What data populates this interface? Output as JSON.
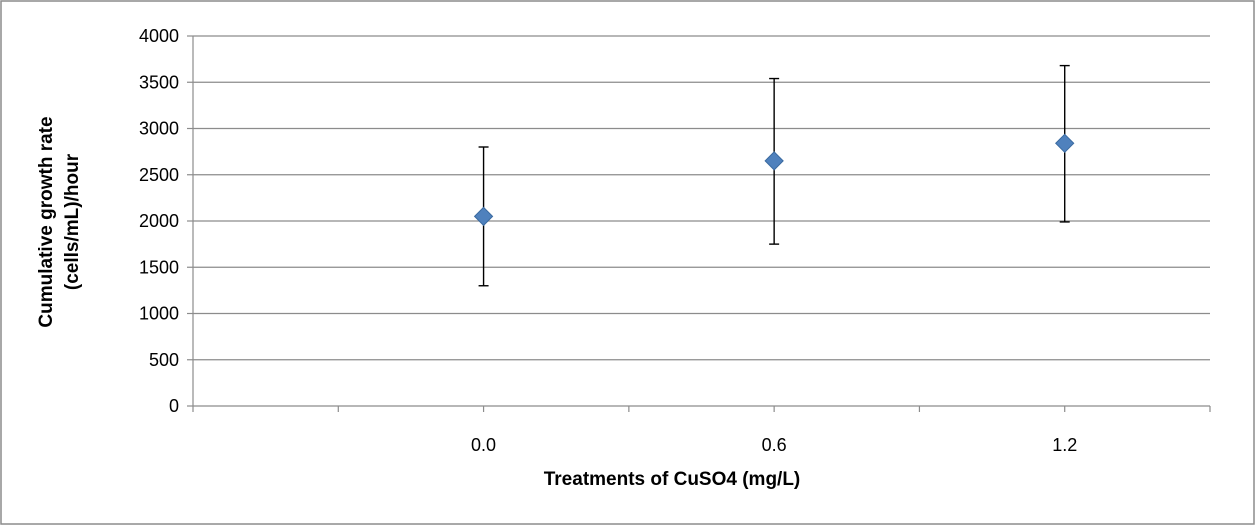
{
  "chart_data": {
    "type": "scatter",
    "title": "",
    "xlabel": "Treatments of CuSO4 (mg/L)",
    "ylabel_lines": [
      "Cumulative growth rate",
      "(cells/mL)/hour"
    ],
    "categories": [
      "0.0",
      "0.6",
      "1.2"
    ],
    "x_category_positions": [
      2,
      4,
      6
    ],
    "x_range": [
      0,
      7
    ],
    "ylim": [
      0,
      4000
    ],
    "y_ticks": [
      0,
      500,
      1000,
      1500,
      2000,
      2500,
      3000,
      3500,
      4000
    ],
    "series": [
      {
        "values": [
          2050,
          2650,
          2840
        ],
        "error_low": [
          1300,
          1750,
          1990
        ],
        "error_high": [
          2800,
          3540,
          3680
        ],
        "color": "#4F81BD",
        "marker": "diamond"
      }
    ],
    "grid": true,
    "legend": "none"
  }
}
